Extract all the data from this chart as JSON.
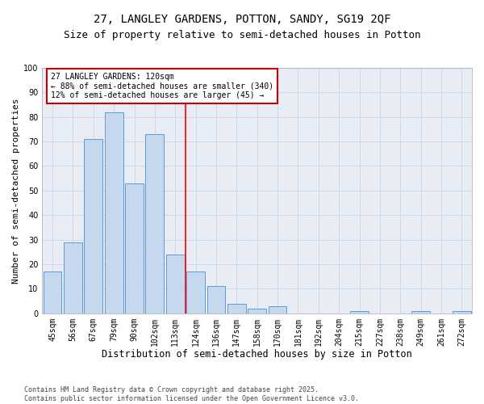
{
  "title": "27, LANGLEY GARDENS, POTTON, SANDY, SG19 2QF",
  "subtitle": "Size of property relative to semi-detached houses in Potton",
  "xlabel": "Distribution of semi-detached houses by size in Potton",
  "ylabel": "Number of semi-detached properties",
  "categories": [
    "45sqm",
    "56sqm",
    "67sqm",
    "79sqm",
    "90sqm",
    "102sqm",
    "113sqm",
    "124sqm",
    "136sqm",
    "147sqm",
    "158sqm",
    "170sqm",
    "181sqm",
    "192sqm",
    "204sqm",
    "215sqm",
    "227sqm",
    "238sqm",
    "249sqm",
    "261sqm",
    "272sqm"
  ],
  "values": [
    17,
    29,
    71,
    82,
    53,
    73,
    24,
    17,
    11,
    4,
    2,
    3,
    0,
    0,
    0,
    1,
    0,
    0,
    1,
    0,
    1
  ],
  "bar_color": "#c5d8ed",
  "bar_edge_color": "#5b9bd5",
  "grid_color": "#d0d8e8",
  "bg_color": "#e8edf5",
  "red_line_index": 7,
  "annotation_text": "27 LANGLEY GARDENS: 120sqm\n← 88% of semi-detached houses are smaller (340)\n12% of semi-detached houses are larger (45) →",
  "annotation_box_color": "#ffffff",
  "annotation_box_edge": "#cc0000",
  "ylim": [
    0,
    100
  ],
  "yticks": [
    0,
    10,
    20,
    30,
    40,
    50,
    60,
    70,
    80,
    90,
    100
  ],
  "footer": "Contains HM Land Registry data © Crown copyright and database right 2025.\nContains public sector information licensed under the Open Government Licence v3.0.",
  "title_fontsize": 10,
  "subtitle_fontsize": 9,
  "xlabel_fontsize": 8.5,
  "ylabel_fontsize": 8,
  "tick_fontsize": 7,
  "annotation_fontsize": 7,
  "footer_fontsize": 6
}
